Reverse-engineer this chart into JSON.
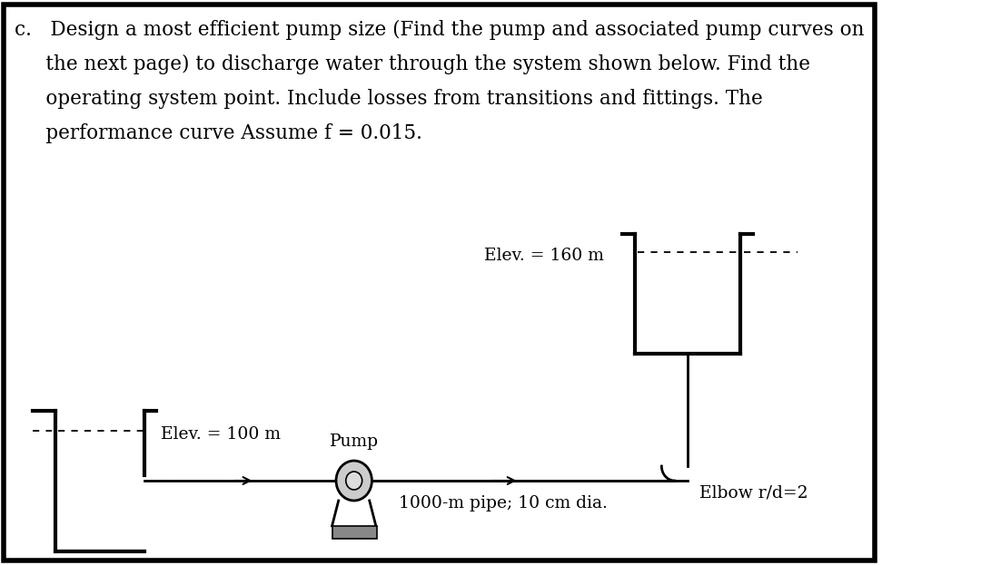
{
  "bg_color": "#ffffff",
  "border_color": "#000000",
  "line_color": "#000000",
  "text_color": "#000000",
  "title_line1": "c.   Design a most efficient pump size (Find the pump and associated pump curves on",
  "title_line2": "     the next page) to discharge water through the system shown below. Find the",
  "title_line3": "     operating system point. Include losses from transitions and fittings. The",
  "title_line4": "     performance curve Assume f = 0.015.",
  "elev_low_label": "Elev. = 100 m",
  "elev_high_label": "Elev. = 160 m",
  "pump_label": "Pump",
  "pipe_label": "1000-m pipe; 10 cm dia.",
  "elbow_label": "Elbow r/d=2",
  "title_fontsize": 15.5,
  "label_fontsize": 13.5,
  "lw_pipe": 2.0,
  "lw_tank": 3.0
}
